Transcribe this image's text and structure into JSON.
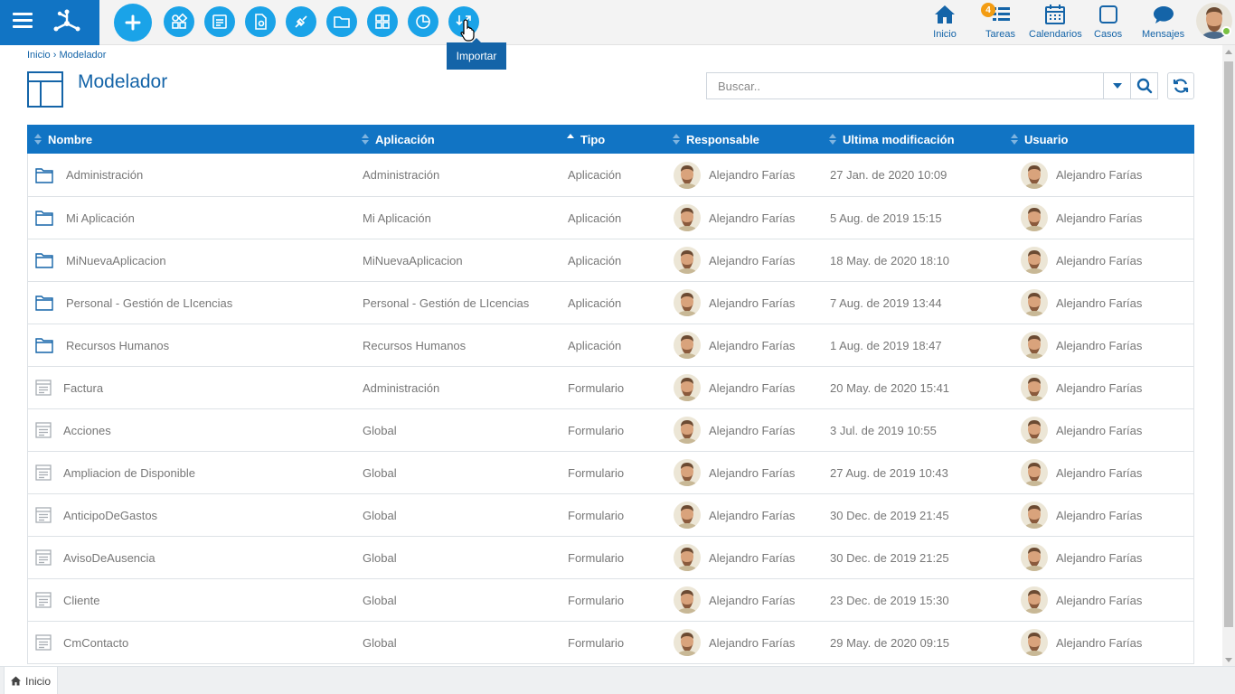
{
  "topbar": {
    "toolbar_buttons": [
      {
        "icon": "plus-icon"
      },
      {
        "icon": "shapes-icon"
      },
      {
        "icon": "form-icon"
      },
      {
        "icon": "document-gear-icon"
      },
      {
        "icon": "plug-icon"
      },
      {
        "icon": "folder-icon"
      },
      {
        "icon": "grid-icon"
      },
      {
        "icon": "pie-chart-icon"
      },
      {
        "icon": "import-icon"
      }
    ],
    "tooltip": "Importar",
    "nav": {
      "inicio": "Inicio",
      "tareas": "Tareas",
      "tareas_badge": "4",
      "calendarios": "Calendarios",
      "casos": "Casos",
      "mensajes": "Mensajes"
    },
    "accent_color": "#1174c4",
    "button_color": "#1aa3e8"
  },
  "breadcrumb": {
    "home": "Inicio",
    "separator": "›",
    "current": "Modelador"
  },
  "page_title": "Modelador",
  "search": {
    "placeholder": "Buscar.."
  },
  "table": {
    "columns": [
      "Nombre",
      "Aplicación",
      "Tipo",
      "Responsable",
      "Ultima modificación",
      "Usuario"
    ],
    "rows": [
      {
        "icon": "folder",
        "nombre": "Administración",
        "aplicacion": "Administración",
        "tipo": "Aplicación",
        "responsable": "Alejandro Farías",
        "modificacion": "27 Jan. de 2020 10:09",
        "usuario": "Alejandro Farías"
      },
      {
        "icon": "folder",
        "nombre": "Mi Aplicación",
        "aplicacion": "Mi Aplicación",
        "tipo": "Aplicación",
        "responsable": "Alejandro Farías",
        "modificacion": "5 Aug. de 2019 15:15",
        "usuario": "Alejandro Farías"
      },
      {
        "icon": "folder",
        "nombre": "MiNuevaAplicacion",
        "aplicacion": "MiNuevaAplicacion",
        "tipo": "Aplicación",
        "responsable": "Alejandro Farías",
        "modificacion": "18 May. de 2020 18:10",
        "usuario": "Alejandro Farías"
      },
      {
        "icon": "folder",
        "nombre": "Personal - Gestión de LIcencias",
        "aplicacion": "Personal - Gestión de LIcencias",
        "tipo": "Aplicación",
        "responsable": "Alejandro Farías",
        "modificacion": "7 Aug. de 2019 13:44",
        "usuario": "Alejandro Farías"
      },
      {
        "icon": "folder",
        "nombre": "Recursos Humanos",
        "aplicacion": "Recursos Humanos",
        "tipo": "Aplicación",
        "responsable": "Alejandro Farías",
        "modificacion": "1 Aug. de 2019 18:47",
        "usuario": "Alejandro Farías"
      },
      {
        "icon": "form",
        "nombre": "Factura",
        "aplicacion": "Administración",
        "tipo": "Formulario",
        "responsable": "Alejandro Farías",
        "modificacion": "20 May. de 2020 15:41",
        "usuario": "Alejandro Farías"
      },
      {
        "icon": "form",
        "nombre": "Acciones",
        "aplicacion": "Global",
        "tipo": "Formulario",
        "responsable": "Alejandro Farías",
        "modificacion": "3 Jul. de 2019 10:55",
        "usuario": "Alejandro Farías"
      },
      {
        "icon": "form",
        "nombre": "Ampliacion de Disponible",
        "aplicacion": "Global",
        "tipo": "Formulario",
        "responsable": "Alejandro Farías",
        "modificacion": "27 Aug. de 2019 10:43",
        "usuario": "Alejandro Farías"
      },
      {
        "icon": "form",
        "nombre": "AnticipoDeGastos",
        "aplicacion": "Global",
        "tipo": "Formulario",
        "responsable": "Alejandro Farías",
        "modificacion": "30 Dec. de 2019 21:45",
        "usuario": "Alejandro Farías"
      },
      {
        "icon": "form",
        "nombre": "AvisoDeAusencia",
        "aplicacion": "Global",
        "tipo": "Formulario",
        "responsable": "Alejandro Farías",
        "modificacion": "30 Dec. de 2019 21:25",
        "usuario": "Alejandro Farías"
      },
      {
        "icon": "form",
        "nombre": "Cliente",
        "aplicacion": "Global",
        "tipo": "Formulario",
        "responsable": "Alejandro Farías",
        "modificacion": "23 Dec. de 2019 15:30",
        "usuario": "Alejandro Farías"
      },
      {
        "icon": "form",
        "nombre": "CmContacto",
        "aplicacion": "Global",
        "tipo": "Formulario",
        "responsable": "Alejandro Farías",
        "modificacion": "29 May. de 2020 09:15",
        "usuario": "Alejandro Farías"
      }
    ]
  },
  "bottom_tab": {
    "label": "Inicio"
  }
}
